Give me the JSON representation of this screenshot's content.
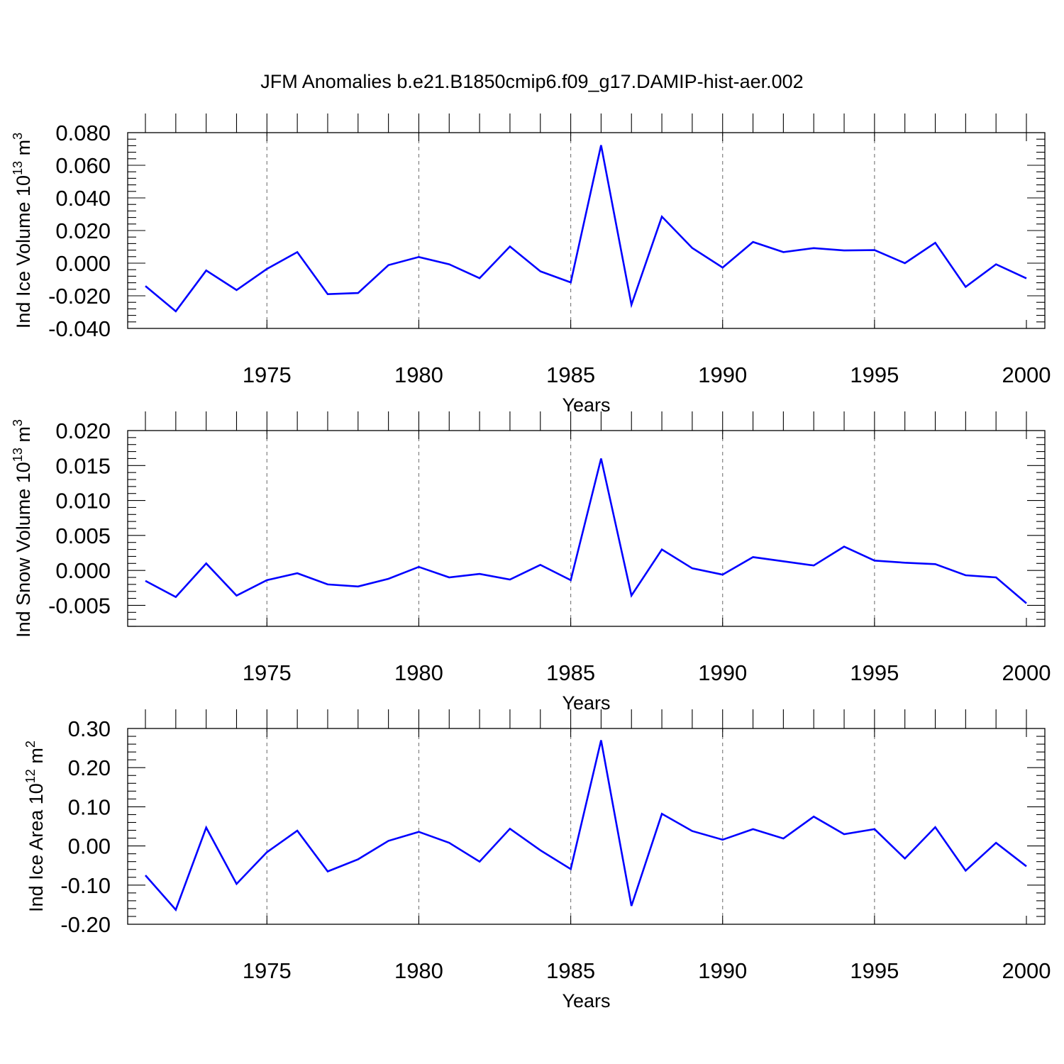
{
  "title": "JFM Anomalies b.e21.B1850cmip6.f09_g17.DAMIP-hist-aer.002",
  "colors": {
    "series": "#0000ff",
    "grid": "#808080",
    "axes": "#000000"
  },
  "chart_data": [
    {
      "type": "line",
      "ylabel": "Ind Ice Volume 10",
      "ylabel_exp": "13",
      "ylabel_unit": " m",
      "ylabel_unit_exp": "3",
      "xlabel": "Years",
      "xlim": [
        1971,
        2000
      ],
      "ylim": [
        -0.04,
        0.08
      ],
      "yticks": [
        -0.04,
        -0.02,
        0.0,
        0.02,
        0.04,
        0.06,
        0.08
      ],
      "ytick_labels": [
        "-0.040",
        "-0.020",
        "0.000",
        "0.020",
        "0.040",
        "0.060",
        "0.080"
      ],
      "xticks": [
        1975,
        1980,
        1985,
        1990,
        1995,
        2000
      ],
      "xtick_labels": [
        "1975",
        "1980",
        "1985",
        "1990",
        "1995",
        "2000"
      ],
      "grid_x": [
        1975,
        1980,
        1985,
        1990,
        1995
      ],
      "series": [
        {
          "name": "Ind Ice Volume",
          "x": [
            1971,
            1972,
            1973,
            1974,
            1975,
            1976,
            1977,
            1978,
            1979,
            1980,
            1981,
            1982,
            1983,
            1984,
            1985,
            1986,
            1987,
            1988,
            1989,
            1990,
            1991,
            1992,
            1993,
            1994,
            1995,
            1996,
            1997,
            1998,
            1999,
            2000
          ],
          "values": [
            -0.014,
            -0.0295,
            -0.0045,
            -0.0165,
            -0.0035,
            0.0068,
            -0.019,
            -0.0183,
            -0.0012,
            0.0038,
            -0.0007,
            -0.0092,
            0.0102,
            -0.005,
            -0.0118,
            0.0723,
            -0.0255,
            0.0285,
            0.0093,
            -0.0027,
            0.013,
            0.0068,
            0.0092,
            0.0078,
            0.008,
            0.0,
            0.0125,
            -0.0145,
            -0.0007,
            -0.0093
          ]
        }
      ]
    },
    {
      "type": "line",
      "ylabel": "Ind Snow Volume 10",
      "ylabel_exp": "13",
      "ylabel_unit": " m",
      "ylabel_unit_exp": "3",
      "xlabel": "Years",
      "xlim": [
        1971,
        2000
      ],
      "ylim": [
        -0.008,
        0.02
      ],
      "yticks": [
        -0.005,
        0.0,
        0.005,
        0.01,
        0.015,
        0.02
      ],
      "ytick_labels": [
        "-0.005",
        "0.000",
        "0.005",
        "0.010",
        "0.015",
        "0.020"
      ],
      "xticks": [
        1975,
        1980,
        1985,
        1990,
        1995,
        2000
      ],
      "xtick_labels": [
        "1975",
        "1980",
        "1985",
        "1990",
        "1995",
        "2000"
      ],
      "grid_x": [
        1975,
        1980,
        1985,
        1990,
        1995
      ],
      "series": [
        {
          "name": "Ind Snow Volume",
          "x": [
            1971,
            1972,
            1973,
            1974,
            1975,
            1976,
            1977,
            1978,
            1979,
            1980,
            1981,
            1982,
            1983,
            1984,
            1985,
            1986,
            1987,
            1988,
            1989,
            1990,
            1991,
            1992,
            1993,
            1994,
            1995,
            1996,
            1997,
            1998,
            1999,
            2000
          ],
          "values": [
            -0.0015,
            -0.0038,
            0.001,
            -0.0036,
            -0.0014,
            -0.0004,
            -0.002,
            -0.0023,
            -0.0012,
            0.0005,
            -0.001,
            -0.0005,
            -0.0013,
            0.0008,
            -0.0014,
            0.016,
            -0.0036,
            0.003,
            0.0003,
            -0.0006,
            0.0019,
            0.0013,
            0.0007,
            0.0034,
            0.0014,
            0.0011,
            0.0009,
            -0.0007,
            -0.001,
            -0.0047
          ]
        }
      ]
    },
    {
      "type": "line",
      "ylabel": "Ind Ice Area 10",
      "ylabel_exp": "12",
      "ylabel_unit": " m",
      "ylabel_unit_exp": "2",
      "xlabel": "Years",
      "xlim": [
        1971,
        2000
      ],
      "ylim": [
        -0.2,
        0.3
      ],
      "yticks": [
        -0.2,
        -0.1,
        0.0,
        0.1,
        0.2,
        0.3
      ],
      "ytick_labels": [
        "-0.20",
        "-0.10",
        "0.00",
        "0.10",
        "0.20",
        "0.30"
      ],
      "xticks": [
        1975,
        1980,
        1985,
        1990,
        1995,
        2000
      ],
      "xtick_labels": [
        "1975",
        "1980",
        "1985",
        "1990",
        "1995",
        "2000"
      ],
      "grid_x": [
        1975,
        1980,
        1985,
        1990,
        1995
      ],
      "series": [
        {
          "name": "Ind Ice Area",
          "x": [
            1971,
            1972,
            1973,
            1974,
            1975,
            1976,
            1977,
            1978,
            1979,
            1980,
            1981,
            1982,
            1983,
            1984,
            1985,
            1986,
            1987,
            1988,
            1989,
            1990,
            1991,
            1992,
            1993,
            1994,
            1995,
            1996,
            1997,
            1998,
            1999,
            2000
          ],
          "values": [
            -0.075,
            -0.163,
            0.047,
            -0.097,
            -0.016,
            0.039,
            -0.065,
            -0.034,
            0.013,
            0.036,
            0.008,
            -0.04,
            0.044,
            -0.011,
            -0.059,
            0.27,
            -0.153,
            0.082,
            0.038,
            0.016,
            0.043,
            0.019,
            0.075,
            0.03,
            0.043,
            -0.032,
            0.048,
            -0.063,
            0.008,
            -0.052
          ]
        }
      ]
    }
  ]
}
